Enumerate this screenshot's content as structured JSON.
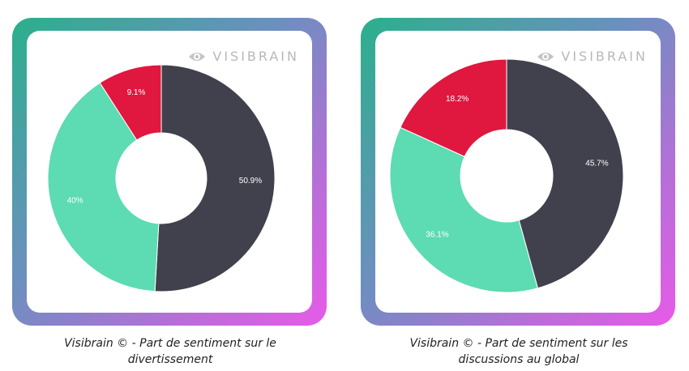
{
  "brand": {
    "name": "VISIBRAIN",
    "icon": "eye-icon"
  },
  "colors": {
    "negative": "#e0173f",
    "positive": "#5ddbb2",
    "neutral": "#41414d"
  },
  "chart_data": [
    {
      "type": "pie",
      "donut": true,
      "caption_line1": "Visibrain © - Part de sentiment sur le",
      "caption_line2": "divertissement",
      "slices": [
        {
          "value": 50.9,
          "label": "50.9%",
          "color": "#41414d"
        },
        {
          "value": 40,
          "label": "40%",
          "color": "#5ddbb2"
        },
        {
          "value": 9.1,
          "label": "9.1%",
          "color": "#e0173f"
        }
      ]
    },
    {
      "type": "pie",
      "donut": true,
      "caption_line1": "Visibrain © - Part de sentiment sur les",
      "caption_line2": "discussions au global",
      "slices": [
        {
          "value": 45.7,
          "label": "45.7%",
          "color": "#41414d"
        },
        {
          "value": 36.1,
          "label": "36.1%",
          "color": "#5ddbb2"
        },
        {
          "value": 18.2,
          "label": "18.2%",
          "color": "#e0173f"
        }
      ]
    }
  ]
}
